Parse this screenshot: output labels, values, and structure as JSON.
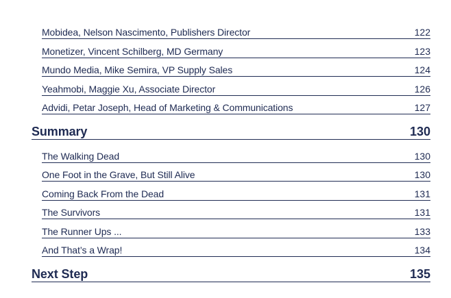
{
  "toc": {
    "entries_top": [
      {
        "title": "Mobidea, Nelson Nascimento, Publishers Director",
        "page": "122"
      },
      {
        "title": "Monetizer, Vincent Schilberg, MD Germany",
        "page": "123"
      },
      {
        "title": "Mundo Media, Mike Semira, VP Supply Sales",
        "page": "124"
      },
      {
        "title": "Yeahmobi, Maggie Xu, Associate Director",
        "page": "126"
      },
      {
        "title": "Advidi, Petar Joseph, Head of Marketing & Communications",
        "page": "127"
      }
    ],
    "summary": {
      "title": "Summary",
      "page": "130"
    },
    "summary_entries": [
      {
        "title": "The Walking Dead",
        "page": "130"
      },
      {
        "title": "One Foot in the Grave, But Still Alive",
        "page": "130"
      },
      {
        "title": "Coming Back From the Dead",
        "page": "131"
      },
      {
        "title": "The Survivors",
        "page": "131"
      },
      {
        "title": "The Runner Ups ...",
        "page": "133"
      },
      {
        "title": "And That’s a Wrap!",
        "page": "134"
      }
    ],
    "next_step": {
      "title": "Next Step",
      "page": "135"
    }
  },
  "colors": {
    "text": "#1e2a52",
    "background": "#ffffff"
  }
}
